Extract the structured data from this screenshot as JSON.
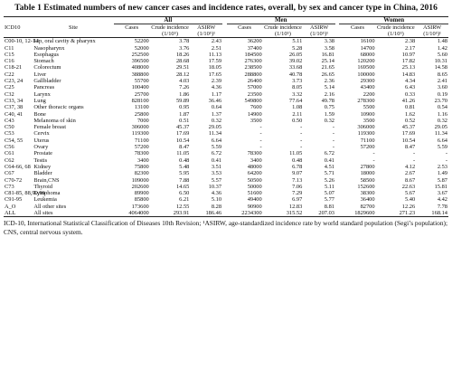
{
  "title": "Table 1 Estimated numbers of new cancer cases and incidence rates, overall, by sex and cancer type in China, 2016",
  "groups": [
    "All",
    "Men",
    "Women"
  ],
  "headers": {
    "icd": "ICD10",
    "site": "Site",
    "cases": "Cases",
    "crude": "Crude incidence (1/10⁵)",
    "asirw": "ASIRW (1/10⁵)¹"
  },
  "rows": [
    {
      "code": "C00-10, 12-14",
      "site": "Lip, oral cavity & pharynx",
      "v": [
        "52200",
        "3.78",
        "2.43",
        "36200",
        "5.11",
        "3.38",
        "16100",
        "2.38",
        "1.48"
      ]
    },
    {
      "code": "C11",
      "site": "Nasopharynx",
      "v": [
        "52000",
        "3.76",
        "2.51",
        "37400",
        "5.28",
        "3.58",
        "14700",
        "2.17",
        "1.42"
      ]
    },
    {
      "code": "C15",
      "site": "Esophagus",
      "v": [
        "252500",
        "18.26",
        "11.13",
        "184500",
        "26.05",
        "16.81",
        "68000",
        "10.97",
        "5.60"
      ]
    },
    {
      "code": "C16",
      "site": "Stomach",
      "v": [
        "396500",
        "28.68",
        "17.59",
        "276300",
        "39.02",
        "25.14",
        "120200",
        "17.82",
        "10.31"
      ]
    },
    {
      "code": "C18-21",
      "site": "Colorectum",
      "v": [
        "408000",
        "29.51",
        "18.05",
        "238500",
        "33.68",
        "21.65",
        "169500",
        "25.13",
        "14.58"
      ]
    },
    {
      "code": "C22",
      "site": "Liver",
      "v": [
        "388800",
        "28.12",
        "17.65",
        "288800",
        "40.78",
        "26.65",
        "100000",
        "14.83",
        "8.65"
      ]
    },
    {
      "code": "C23, 24",
      "site": "Gallbladder",
      "v": [
        "55700",
        "4.03",
        "2.39",
        "26400",
        "3.73",
        "2.36",
        "29300",
        "4.34",
        "2.41"
      ]
    },
    {
      "code": "C25",
      "site": "Pancreas",
      "v": [
        "100400",
        "7.26",
        "4.36",
        "57000",
        "8.05",
        "5.14",
        "43400",
        "6.43",
        "3.60"
      ]
    },
    {
      "code": "C32",
      "site": "Larynx",
      "v": [
        "25700",
        "1.86",
        "1.17",
        "23500",
        "3.32",
        "2.16",
        "2200",
        "0.33",
        "0.19"
      ]
    },
    {
      "code": "C33, 34",
      "site": "Lung",
      "v": [
        "828100",
        "59.89",
        "36.46",
        "549800",
        "77.64",
        "49.78",
        "278300",
        "41.26",
        "23.70"
      ]
    },
    {
      "code": "C37, 38",
      "site": "Other thoracic organs",
      "v": [
        "13100",
        "0.95",
        "0.64",
        "7600",
        "1.08",
        "0.75",
        "5500",
        "0.81",
        "0.54"
      ]
    },
    {
      "code": "C40, 41",
      "site": "Bone",
      "v": [
        "25800",
        "1.87",
        "1.37",
        "14900",
        "2.11",
        "1.59",
        "10900",
        "1.62",
        "1.16"
      ]
    },
    {
      "code": "C43",
      "site": "Melanoma of skin",
      "v": [
        "7000",
        "0.51",
        "0.32",
        "3500",
        "0.50",
        "0.32",
        "3500",
        "0.52",
        "0.32"
      ]
    },
    {
      "code": "C50",
      "site": "Female breast",
      "v": [
        "306000",
        "45.37",
        "29.05",
        "-",
        "-",
        "-",
        "306000",
        "45.37",
        "29.05"
      ]
    },
    {
      "code": "C53",
      "site": "Cervix",
      "v": [
        "119300",
        "17.69",
        "11.34",
        "-",
        "-",
        "-",
        "119300",
        "17.69",
        "11.34"
      ]
    },
    {
      "code": "C54, 55",
      "site": "Uterus",
      "v": [
        "71100",
        "10.54",
        "6.64",
        "-",
        "-",
        "-",
        "71100",
        "10.54",
        "6.64"
      ]
    },
    {
      "code": "C56",
      "site": "Ovary",
      "v": [
        "57200",
        "8.47",
        "5.59",
        "-",
        "-",
        "-",
        "57200",
        "8.47",
        "5.59"
      ]
    },
    {
      "code": "C61",
      "site": "Prostate",
      "v": [
        "78300",
        "11.05",
        "6.72",
        "78300",
        "11.05",
        "6.72",
        "-",
        "-",
        "-"
      ]
    },
    {
      "code": "C62",
      "site": "Testis",
      "v": [
        "3400",
        "0.48",
        "0.41",
        "3400",
        "0.48",
        "0.41",
        "-",
        "-",
        "-"
      ]
    },
    {
      "code": "C64-66, 68",
      "site": "Kidney",
      "v": [
        "75800",
        "5.48",
        "3.51",
        "48000",
        "6.78",
        "4.51",
        "27800",
        "4.12",
        "2.53"
      ]
    },
    {
      "code": "C67",
      "site": "Bladder",
      "v": [
        "82300",
        "5.95",
        "3.53",
        "64200",
        "9.07",
        "5.71",
        "18000",
        "2.67",
        "1.49"
      ]
    },
    {
      "code": "C70-72",
      "site": "Brain,CNS",
      "v": [
        "109000",
        "7.88",
        "5.57",
        "50500",
        "7.13",
        "5.26",
        "58500",
        "8.67",
        "5.87"
      ]
    },
    {
      "code": "C73",
      "site": "Thyroid",
      "v": [
        "202600",
        "14.65",
        "10.37",
        "50000",
        "7.06",
        "5.11",
        "152600",
        "22.63",
        "15.81"
      ]
    },
    {
      "code": "C81-85, 88,90,96",
      "site": "Lymphoma",
      "v": [
        "89900",
        "6.50",
        "4.36",
        "51600",
        "7.29",
        "5.07",
        "38300",
        "5.67",
        "3.67"
      ]
    },
    {
      "code": "C91-95",
      "site": "Leukemia",
      "v": [
        "85800",
        "6.21",
        "5.10",
        "49400",
        "6.97",
        "5.77",
        "36400",
        "5.40",
        "4.42"
      ]
    },
    {
      "code": "A_O",
      "site": "All other sites",
      "v": [
        "173600",
        "12.55",
        "8.28",
        "90900",
        "12.83",
        "8.81",
        "82700",
        "12.26",
        "7.78"
      ]
    },
    {
      "code": "ALL",
      "site": "All sites",
      "v": [
        "4064000",
        "293.91",
        "186.46",
        "2234300",
        "315.52",
        "207.03",
        "1829600",
        "271.23",
        "168.14"
      ]
    }
  ],
  "footnote": "ICD-10, International Statistical Classification of Diseases 10th Revision; ¹ASIRW, age-standardized incidence rate by world standard population (Segi’s population); CNS, central nervous system."
}
